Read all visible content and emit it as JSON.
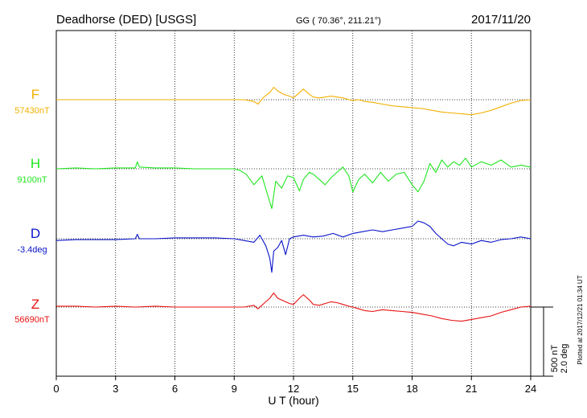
{
  "chart_data": {
    "type": "line",
    "title": "Deadhorse (DED)  [USGS]",
    "coords": "GG ( 70.36°, 211.21°)",
    "date": "2017/11/20",
    "xlabel": "U T (hour)",
    "xlim": [
      0,
      24
    ],
    "xticks": [
      "0",
      "3",
      "6",
      "9",
      "12",
      "15",
      "18",
      "21",
      "24"
    ],
    "grid": true,
    "scale_bar": {
      "label_nt": "500 nT",
      "label_deg": "2.0 deg"
    },
    "plotted_note": "Plotted at 2017/12/21 01:34 UT",
    "series": [
      {
        "name": "F",
        "baseline_label": "57430nT",
        "color": "#f2b000",
        "x": [
          0,
          1,
          2,
          3,
          4,
          5,
          6,
          7,
          8,
          9,
          9.5,
          10,
          10.2,
          10.5,
          10.8,
          11,
          11.2,
          11.5,
          11.8,
          12,
          12.3,
          12.5,
          12.8,
          13,
          13.3,
          13.6,
          13.9,
          14.2,
          14.5,
          14.8,
          15,
          15.3,
          15.6,
          16,
          16.5,
          17,
          17.5,
          18,
          18.5,
          19,
          19.5,
          20,
          20.5,
          21,
          21.5,
          22,
          22.5,
          23,
          23.5,
          24
        ],
        "values": [
          0,
          0,
          0,
          0,
          0,
          0,
          0,
          0,
          0,
          0,
          0,
          -2,
          -5,
          3,
          8,
          14,
          10,
          6,
          4,
          2,
          8,
          12,
          6,
          3,
          2,
          3,
          4,
          3,
          2,
          0,
          -1,
          0,
          -2,
          -3,
          -5,
          -7,
          -8,
          -9,
          -10,
          -12,
          -14,
          -15,
          -16,
          -17,
          -15,
          -12,
          -8,
          -4,
          -1,
          0
        ]
      },
      {
        "name": "H",
        "baseline_label": "9100nT",
        "color": "#1fe61f",
        "x": [
          0,
          1,
          2,
          3,
          4,
          4.1,
          4.2,
          5,
          6,
          7,
          8,
          9,
          9.3,
          9.6,
          10,
          10.4,
          10.7,
          10.9,
          11.1,
          11.4,
          11.7,
          12,
          12.3,
          12.5,
          12.8,
          13,
          13.3,
          13.6,
          13.9,
          14.2,
          14.5,
          14.8,
          15,
          15.3,
          15.6,
          16,
          16.4,
          16.8,
          17.2,
          17.6,
          18,
          18.3,
          18.6,
          18.9,
          19.2,
          19.5,
          19.8,
          20.1,
          20.4,
          20.7,
          21,
          21.5,
          22,
          22.5,
          23,
          23.5,
          24
        ],
        "values": [
          0,
          1,
          0,
          1,
          1,
          8,
          2,
          1,
          1,
          0,
          0,
          0,
          -2,
          -6,
          -18,
          -8,
          -30,
          -45,
          -14,
          -22,
          -8,
          -10,
          -25,
          -12,
          -4,
          -6,
          -12,
          -18,
          -10,
          -4,
          2,
          -8,
          -26,
          -12,
          -6,
          -16,
          -4,
          -14,
          -6,
          -4,
          -18,
          -26,
          -14,
          6,
          -4,
          10,
          2,
          8,
          4,
          12,
          2,
          8,
          4,
          10,
          2,
          4,
          2
        ]
      },
      {
        "name": "D",
        "baseline_label": "-3.4deg",
        "color": "#0a14c8",
        "x": [
          0,
          1,
          2,
          3,
          4,
          4.1,
          4.2,
          5,
          6,
          7,
          8,
          9,
          9.5,
          10,
          10.3,
          10.6,
          10.8,
          10.9,
          11,
          11.2,
          11.4,
          11.6,
          11.8,
          12,
          12.5,
          13,
          13.5,
          14,
          14.5,
          15,
          15.5,
          16,
          16.5,
          17,
          17.5,
          18,
          18.3,
          18.6,
          18.9,
          19.2,
          19.5,
          19.8,
          20.1,
          20.5,
          21,
          21.5,
          22,
          22.5,
          23,
          23.5,
          24
        ],
        "values": [
          -2,
          -1,
          -1,
          -1,
          0,
          5,
          0,
          0,
          1,
          1,
          1,
          0,
          -2,
          -4,
          4,
          -8,
          -22,
          -38,
          -14,
          -10,
          -2,
          -18,
          0,
          2,
          4,
          2,
          3,
          6,
          2,
          6,
          8,
          10,
          8,
          10,
          12,
          14,
          20,
          18,
          14,
          6,
          0,
          -6,
          -8,
          -4,
          -6,
          -2,
          -4,
          -1,
          0,
          2,
          0
        ]
      },
      {
        "name": "Z",
        "baseline_label": "56690nT",
        "color": "#e81010",
        "x": [
          0,
          1,
          2,
          3,
          4,
          5,
          6,
          7,
          8,
          9,
          9.5,
          10,
          10.2,
          10.5,
          10.8,
          11,
          11.2,
          11.5,
          11.8,
          12,
          12.3,
          12.5,
          12.8,
          13,
          13.3,
          13.6,
          13.9,
          14.2,
          14.5,
          14.8,
          15,
          15.3,
          15.6,
          16,
          16.5,
          17,
          17.5,
          18,
          18.5,
          19,
          19.5,
          20,
          20.5,
          21,
          21.5,
          22,
          22.5,
          23,
          23.5,
          24
        ],
        "values": [
          1,
          1,
          0,
          1,
          0,
          1,
          0,
          0,
          0,
          0,
          0,
          2,
          -2,
          4,
          10,
          16,
          10,
          7,
          4,
          3,
          10,
          14,
          8,
          3,
          2,
          4,
          6,
          5,
          3,
          1,
          0,
          -2,
          -4,
          -5,
          -3,
          -4,
          -5,
          -6,
          -8,
          -10,
          -13,
          -15,
          -16,
          -14,
          -12,
          -10,
          -6,
          -3,
          0,
          1
        ]
      }
    ]
  }
}
